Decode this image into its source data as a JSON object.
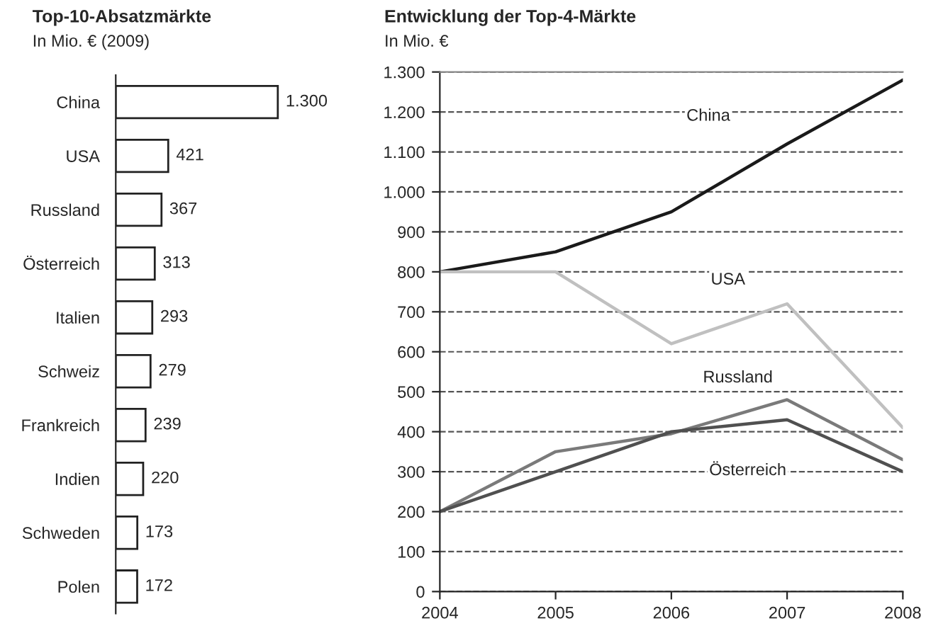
{
  "chart_data": [
    {
      "type": "bar",
      "orientation": "horizontal",
      "title": "Top-10-Absatzmärkte",
      "subtitle": "In Mio. € (2009)",
      "categories": [
        "China",
        "USA",
        "Russland",
        "Österreich",
        "Italien",
        "Schweiz",
        "Frankreich",
        "Indien",
        "Schweden",
        "Polen"
      ],
      "values": [
        1300,
        421,
        367,
        313,
        293,
        279,
        239,
        220,
        173,
        172
      ],
      "value_labels": [
        "1.300",
        "421",
        "367",
        "313",
        "293",
        "279",
        "239",
        "220",
        "173",
        "172"
      ],
      "color": "#ffffff",
      "tick_labels": "y"
    },
    {
      "type": "line",
      "title": "Entwicklung der Top-4-Märkte",
      "subtitle": "In Mio. €",
      "x": [
        2004,
        2005,
        2006,
        2007,
        2008
      ],
      "series": [
        {
          "name": "China",
          "color": "#1a1a1a",
          "values": [
            800,
            850,
            950,
            1120,
            1280
          ]
        },
        {
          "name": "USA",
          "color": "#c0c0c0",
          "values": [
            800,
            800,
            620,
            720,
            410
          ]
        },
        {
          "name": "Russland",
          "color": "#7a7a7a",
          "values": [
            200,
            350,
            395,
            480,
            330
          ]
        },
        {
          "name": "Österreich",
          "color": "#505050",
          "values": [
            200,
            300,
            400,
            430,
            300
          ]
        }
      ],
      "xlim": [
        2004,
        2008
      ],
      "xticks": [
        2004,
        2005,
        2006,
        2007,
        2008
      ],
      "ylim": [
        0,
        1300
      ],
      "yticks": [
        0,
        100,
        200,
        300,
        400,
        500,
        600,
        700,
        800,
        900,
        {
          "value": 1000,
          "label": "1.000"
        },
        {
          "value": 1100,
          "label": "1.100"
        },
        {
          "value": 1200,
          "label": "1.200"
        },
        {
          "value": 1300,
          "label": "1.300"
        }
      ],
      "grid": "y",
      "line_style": "solid",
      "marker": "none"
    }
  ]
}
